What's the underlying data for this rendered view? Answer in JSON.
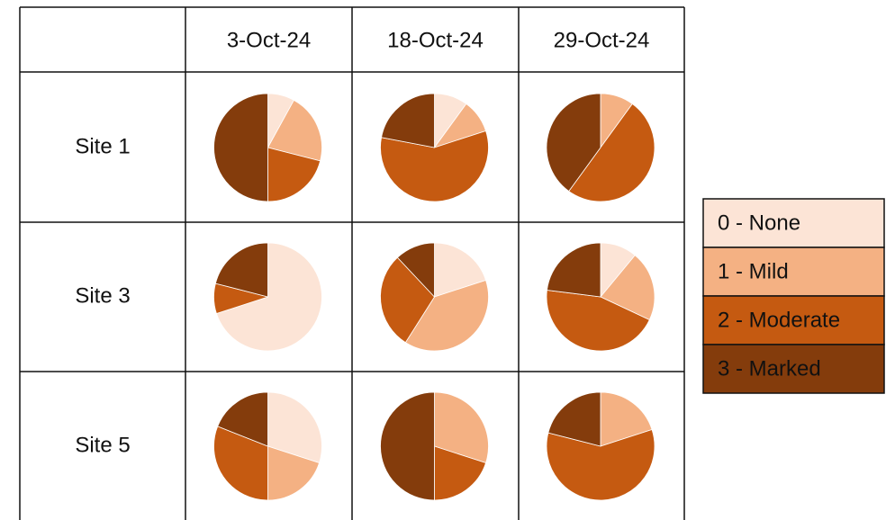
{
  "table": {
    "columns": [
      "3-Oct-24",
      "18-Oct-24",
      "29-Oct-24"
    ],
    "rows": [
      "Site 1",
      "Site 3",
      "Site 5"
    ]
  },
  "legend": {
    "labels": [
      "0 - None",
      "1 - Mild",
      "2 - Moderate",
      "3 - Marked"
    ],
    "colors": [
      "#fce4d6",
      "#f4b183",
      "#c55a11",
      "#843c0c"
    ]
  },
  "chart_data": [
    {
      "type": "pie",
      "values": [
        8,
        21,
        21,
        50
      ]
    },
    {
      "type": "pie",
      "values": [
        10,
        10,
        58,
        22
      ]
    },
    {
      "type": "pie",
      "values": [
        0,
        10,
        50,
        40
      ]
    },
    {
      "type": "pie",
      "values": [
        70,
        0,
        9,
        21
      ]
    },
    {
      "type": "pie",
      "values": [
        20,
        39,
        29,
        12
      ]
    },
    {
      "type": "pie",
      "values": [
        11,
        21,
        45,
        23
      ]
    },
    {
      "type": "pie",
      "values": [
        30,
        20,
        31,
        19
      ]
    },
    {
      "type": "pie",
      "values": [
        0,
        30,
        20,
        50
      ]
    },
    {
      "type": "pie",
      "values": [
        0,
        20,
        59,
        21
      ]
    }
  ]
}
